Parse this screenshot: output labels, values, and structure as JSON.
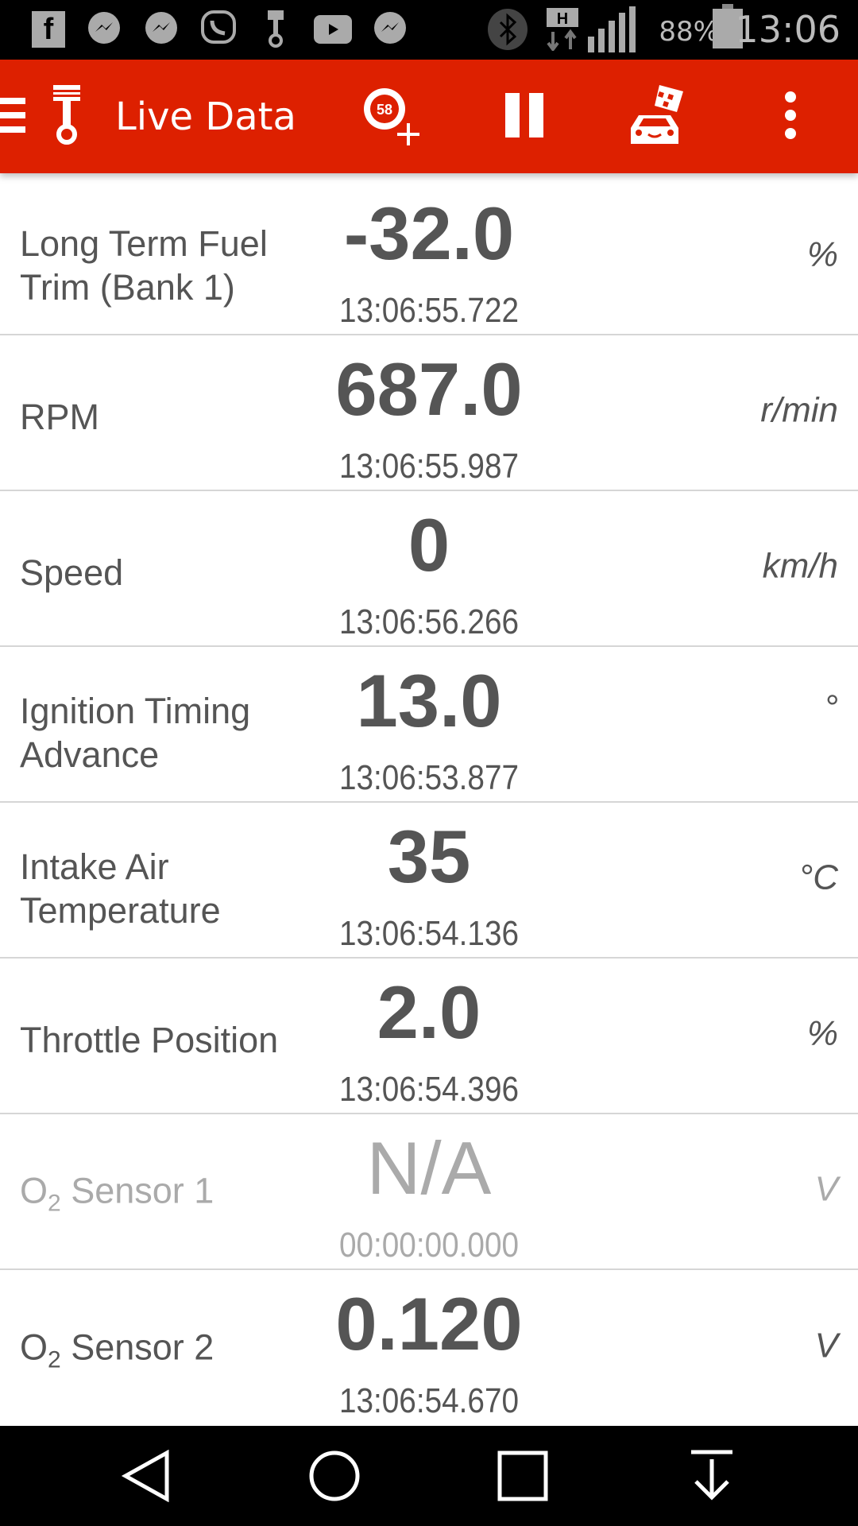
{
  "status_bar": {
    "icons": [
      "facebook-icon",
      "messenger-icon",
      "messenger-icon",
      "viber-icon",
      "piston-icon",
      "youtube-icon",
      "messenger-icon",
      "bluetooth-icon",
      "hspa-data-icon",
      "signal-icon",
      "battery-icon"
    ],
    "battery": "88%",
    "time": "13:06"
  },
  "toolbar": {
    "title": "Live Data",
    "accent": "#dd2000",
    "actions": [
      "add-gauge-icon",
      "pause-icon",
      "car-race-icon",
      "more-vert-icon"
    ]
  },
  "rows": [
    {
      "label": "Long Term Fuel Trim (Bank 1)",
      "value": "-32.0",
      "timestamp": "13:06:55.722",
      "unit": "%"
    },
    {
      "label": "RPM",
      "value": "687.0",
      "timestamp": "13:06:55.987",
      "unit": "r/min"
    },
    {
      "label": "Speed",
      "value": "0",
      "timestamp": "13:06:56.266",
      "unit": "km/h"
    },
    {
      "label": "Ignition Timing Advance",
      "value": "13.0",
      "timestamp": "13:06:53.877",
      "unit": "°"
    },
    {
      "label": "Intake Air Temperature",
      "value": "35",
      "timestamp": "13:06:54.136",
      "unit": "°C"
    },
    {
      "label": "Throttle Position",
      "value": "2.0",
      "timestamp": "13:06:54.396",
      "unit": "%"
    },
    {
      "label_prefix": "O",
      "label_sub": "2",
      "label_suffix": " Sensor 1",
      "value": "N/A",
      "timestamp": "00:00:00.000",
      "unit": "V"
    },
    {
      "label_prefix": "O",
      "label_sub": "2",
      "label_suffix": " Sensor 2",
      "value": "0.120",
      "timestamp": "13:06:54.670",
      "unit": "V"
    }
  ]
}
